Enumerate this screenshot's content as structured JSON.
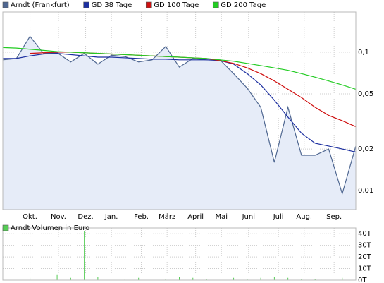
{
  "chart_data": [
    {
      "type": "line",
      "log_y": true,
      "grid": true,
      "legend": "top",
      "xlim": [
        0,
        26
      ],
      "xticks": [
        {
          "value": 2.0,
          "label": "Okt."
        },
        {
          "value": 4.1,
          "label": "Nov."
        },
        {
          "value": 6.1,
          "label": "Dez."
        },
        {
          "value": 8.0,
          "label": "Jan."
        },
        {
          "value": 10.2,
          "label": "Feb."
        },
        {
          "value": 12.1,
          "label": "März"
        },
        {
          "value": 14.2,
          "label": "April"
        },
        {
          "value": 16.1,
          "label": "Mai"
        },
        {
          "value": 18.1,
          "label": "Juni"
        },
        {
          "value": 20.3,
          "label": "Juli"
        },
        {
          "value": 22.2,
          "label": "Aug."
        },
        {
          "value": 24.4,
          "label": "Sep."
        }
      ],
      "ylim": [
        0.0073,
        0.195
      ],
      "yticks": [
        {
          "value": 0.1,
          "label": "0,1"
        },
        {
          "value": 0.05,
          "label": "0,05"
        },
        {
          "value": 0.02,
          "label": "0,02"
        },
        {
          "value": 0.01,
          "label": "0,01"
        }
      ],
      "series": [
        {
          "name": "Arndt (Frankfurt)",
          "color": "#4f6791",
          "fill": "#e6ecf8",
          "values": [
            0.088,
            0.09,
            0.13,
            0.098,
            0.099,
            0.085,
            0.098,
            0.082,
            0.095,
            0.093,
            0.085,
            0.088,
            0.11,
            0.078,
            0.09,
            0.088,
            0.088,
            0.07,
            0.055,
            0.04,
            0.016,
            0.04,
            0.018,
            0.018,
            0.02,
            0.0095,
            0.021
          ]
        },
        {
          "name": "GD 38 Tage",
          "color": "#1c2fa0",
          "values": [
            0.09,
            0.09,
            0.094,
            0.097,
            0.098,
            0.096,
            0.094,
            0.092,
            0.092,
            0.091,
            0.09,
            0.089,
            0.089,
            0.088,
            0.088,
            0.088,
            0.087,
            0.082,
            0.07,
            0.058,
            0.045,
            0.034,
            0.026,
            0.022,
            0.021,
            0.02,
            0.019
          ]
        },
        {
          "name": "GD 100 Tage",
          "color": "#d01010",
          "values": [
            null,
            null,
            0.098,
            0.099,
            0.1,
            0.1,
            0.099,
            0.098,
            0.097,
            0.096,
            0.095,
            0.094,
            0.093,
            0.092,
            0.091,
            0.09,
            0.087,
            0.083,
            0.077,
            0.07,
            0.062,
            0.054,
            0.047,
            0.04,
            0.035,
            0.032,
            0.029
          ]
        },
        {
          "name": "GD 200 Tage",
          "color": "#22cc22",
          "values": [
            0.108,
            0.107,
            0.105,
            0.103,
            0.101,
            0.1,
            0.099,
            0.098,
            0.097,
            0.096,
            0.095,
            0.094,
            0.093,
            0.092,
            0.091,
            0.09,
            0.088,
            0.086,
            0.083,
            0.08,
            0.077,
            0.074,
            0.07,
            0.066,
            0.062,
            0.058,
            0.054
          ]
        }
      ]
    },
    {
      "type": "bar",
      "grid": true,
      "legend": "top",
      "xlim": [
        0,
        26
      ],
      "xticks": [
        2.0,
        4.1,
        6.1,
        8.0,
        10.2,
        12.1,
        14.2,
        16.1,
        18.1,
        20.3,
        22.2,
        24.4
      ],
      "ylim": [
        0,
        45
      ],
      "yticks": [
        {
          "value": 40,
          "label": "40T"
        },
        {
          "value": 30,
          "label": "30T"
        },
        {
          "value": 20,
          "label": "20T"
        },
        {
          "value": 10,
          "label": "10T"
        },
        {
          "value": 0,
          "label": "0T"
        }
      ],
      "series": [
        {
          "name": "Arndt Volumen in Euro",
          "color": "#55cc55",
          "values": [
            1,
            0,
            2,
            0,
            5,
            2,
            42,
            3,
            0,
            1,
            2,
            0,
            1,
            3,
            2,
            1,
            0,
            2,
            1,
            2,
            3,
            2,
            1,
            1,
            0,
            2,
            3
          ]
        }
      ]
    }
  ]
}
